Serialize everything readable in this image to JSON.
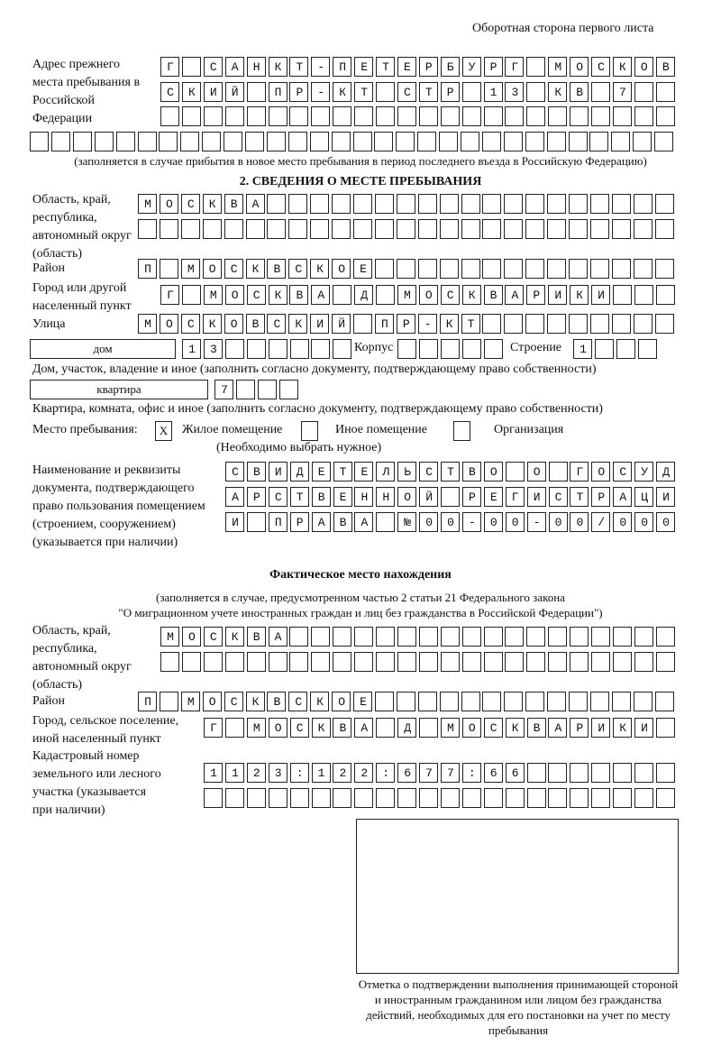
{
  "header": "Оборотная сторона первого листа",
  "prev_address": {
    "label": "Адрес прежнего места пребывания в Российской Федерации",
    "rows": [
      "Г САНКТ-ПЕТЕРБУРГ МОСКОВ",
      "СКИЙ ПР-КТ СТР 13 КВ 7",
      "",
      ""
    ],
    "hint": "(заполняется в случае прибытия в новое место пребывания в период последнего въезда в Российскую Федерацию)"
  },
  "section2": {
    "title": "2. СВЕДЕНИЯ О МЕСТЕ ПРЕБЫВАНИЯ",
    "region_label": "Область, край, республика, автономный округ (область)",
    "region_rows": [
      "МОСКВА",
      ""
    ],
    "district_label": "Район",
    "district": "П МОСКВСКОЕ",
    "city_label": "Город или другой населенный пункт",
    "city": "Г МОСКВА Д МОСКВАРИКИ",
    "street_label": "Улица",
    "street": "МОСКОВСКИЙ ПР-КТ",
    "house_type": "дом",
    "house": "13",
    "korpus_label": "Корпус",
    "korpus": "",
    "building_label": "Строение",
    "building": "1",
    "house_hint": "Дом, участок, владение и иное (заполнить согласно документу, подтверждающему право собственности)",
    "flat_type": "квартира",
    "flat": "7",
    "flat_hint": "Квартира, комната, офис и иное (заполнить согласно документу, подтверждающему право собственности)",
    "place_label": "Место пребывания:",
    "place_options": [
      {
        "label": "Жилое помещение",
        "mark": "X"
      },
      {
        "label": "Иное помещение",
        "mark": ""
      },
      {
        "label": "Организация",
        "mark": ""
      }
    ],
    "place_hint": "(Необходимо выбрать нужное)",
    "doc_label": "Наименование и реквизиты документа, подтверждающего право пользования помещением (строением, сооружением) (указывается при наличии)",
    "doc_rows": [
      "СВИДЕТЕЛЬСТВО О ГОСУД",
      "АРСТВЕННОЙ РЕГИСТРАЦИ",
      "И ПРАВА №00-00-00/000"
    ]
  },
  "actual": {
    "title": "Фактическое место нахождения",
    "hint1": "(заполняется в случае, предусмотренном частью 2 статьи 21 Федерального закона",
    "hint2": "\"О миграционном учете иностранных граждан и лиц без гражданства в Российской Федерации\")",
    "region_label": "Область, край, республика, автономный округ (область)",
    "region_rows": [
      "МОСКВА",
      ""
    ],
    "district_label": "Район",
    "district": "П МОСКВСКОЕ",
    "city_label": "Город, сельское поселение, иной населенный пункт",
    "city": "Г МОСКВА Д МОСКВАРИКИ",
    "cadastre_label": "Кадастровый номер земельного или лесного участка (указывается при наличии)",
    "cadastre_rows": [
      "1123:122:677:66",
      ""
    ]
  },
  "stamp_caption": "Отметка о подтверждении выполнения принимающей стороной и иностранным гражданином или лицом без гражданства действий, необходимых для его постановки на учет по месту пребывания"
}
